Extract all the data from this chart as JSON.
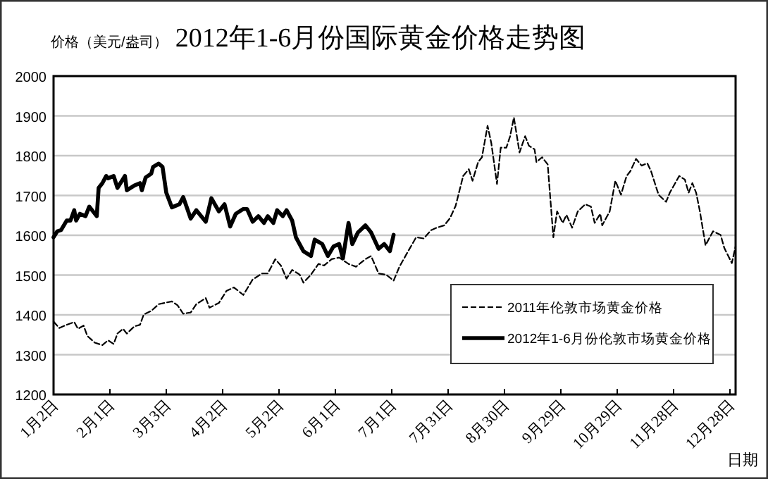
{
  "chart_data": {
    "type": "line",
    "title": "2012年1-6月份国际黄金价格走势图",
    "ylabel": "价格（美元/盎司）",
    "xlabel": "日期",
    "xlim": [
      "--01-02",
      "--12-31"
    ],
    "ylim": [
      1200,
      2000
    ],
    "xticks": [
      {
        "value": "--01-02",
        "label": "1月2日"
      },
      {
        "value": "--02-01",
        "label": "2月1日"
      },
      {
        "value": "--03-03",
        "label": "3月3日"
      },
      {
        "value": "--04-02",
        "label": "4月2日"
      },
      {
        "value": "--05-02",
        "label": "5月2日"
      },
      {
        "value": "--06-01",
        "label": "6月1日"
      },
      {
        "value": "--07-01",
        "label": "7月1日"
      },
      {
        "value": "--07-31",
        "label": "7月31日"
      },
      {
        "value": "--08-30",
        "label": "8月30日"
      },
      {
        "value": "--09-29",
        "label": "9月29日"
      },
      {
        "value": "--10-29",
        "label": "10月29日"
      },
      {
        "value": "--11-28",
        "label": "11月28日"
      },
      {
        "value": "--12-28",
        "label": "12月28日"
      }
    ],
    "yticks": [
      1200,
      1300,
      1400,
      1500,
      1600,
      1700,
      1800,
      1900,
      2000
    ],
    "grid": "y",
    "legend": "bottom right",
    "marker": "none",
    "series": [
      {
        "name": "2011年伦敦市场黄金价格",
        "color": "#000000",
        "line_style": "dashed",
        "x": [
          "--01-02",
          "--01-05",
          "--01-09",
          "--01-13",
          "--01-15",
          "--01-18",
          "--01-20",
          "--01-24",
          "--01-28",
          "--01-31",
          "--02-03",
          "--02-05",
          "--02-08",
          "--02-10",
          "--02-14",
          "--02-17",
          "--02-19",
          "--02-23",
          "--02-27",
          "--03-02",
          "--03-06",
          "--03-09",
          "--03-12",
          "--03-16",
          "--03-19",
          "--03-24",
          "--03-26",
          "--03-31",
          "--04-04",
          "--04-08",
          "--04-13",
          "--04-18",
          "--04-23",
          "--04-26",
          "--04-30",
          "--05-03",
          "--05-06",
          "--05-09",
          "--05-13",
          "--05-15",
          "--05-19",
          "--05-23",
          "--05-26",
          "--05-30",
          "--06-03",
          "--06-08",
          "--06-12",
          "--06-17",
          "--06-20",
          "--06-24",
          "--06-28",
          "--07-02",
          "--07-05",
          "--07-09",
          "--07-14",
          "--07-18",
          "--07-22",
          "--07-25",
          "--07-29",
          "--08-01",
          "--08-04",
          "--08-08",
          "--08-11",
          "--08-13",
          "--08-16",
          "--08-18",
          "--08-21",
          "--08-23",
          "--08-26",
          "--08-28",
          "--08-31",
          "--09-02",
          "--09-04",
          "--09-07",
          "--09-10",
          "--09-12",
          "--09-15",
          "--09-16",
          "--09-19",
          "--09-22",
          "--09-25",
          "--09-27",
          "--09-30",
          "--10-02",
          "--10-05",
          "--10-08",
          "--10-12",
          "--10-15",
          "--10-17",
          "--10-20",
          "--10-21",
          "--10-25",
          "--10-28",
          "--10-31",
          "--11-03",
          "--11-05",
          "--11-08",
          "--11-11",
          "--11-14",
          "--11-16",
          "--11-20",
          "--11-24",
          "--11-26",
          "--12-01",
          "--12-04",
          "--12-06",
          "--12-08",
          "--12-10",
          "--12-12",
          "--12-15",
          "--12-19",
          "--12-23",
          "--12-25",
          "--12-29",
          "--12-31"
        ],
        "values": [
          1383,
          1367,
          1375,
          1382,
          1365,
          1373,
          1347,
          1330,
          1324,
          1336,
          1327,
          1353,
          1365,
          1353,
          1371,
          1375,
          1401,
          1410,
          1427,
          1430,
          1434,
          1424,
          1403,
          1406,
          1427,
          1442,
          1418,
          1430,
          1460,
          1469,
          1450,
          1489,
          1504,
          1504,
          1540,
          1524,
          1491,
          1513,
          1501,
          1481,
          1501,
          1528,
          1524,
          1540,
          1544,
          1528,
          1521,
          1540,
          1548,
          1504,
          1501,
          1486,
          1520,
          1554,
          1595,
          1592,
          1613,
          1619,
          1625,
          1643,
          1674,
          1749,
          1766,
          1737,
          1784,
          1796,
          1875,
          1831,
          1729,
          1820,
          1820,
          1849,
          1896,
          1808,
          1849,
          1825,
          1816,
          1784,
          1796,
          1778,
          1595,
          1660,
          1631,
          1651,
          1619,
          1660,
          1678,
          1672,
          1631,
          1654,
          1625,
          1660,
          1737,
          1702,
          1749,
          1761,
          1792,
          1775,
          1781,
          1761,
          1702,
          1684,
          1707,
          1749,
          1740,
          1707,
          1731,
          1707,
          1660,
          1575,
          1610,
          1601,
          1568,
          1530,
          1572
        ]
      },
      {
        "name": "2012年1-6月份伦敦市场黄金价格",
        "color": "#000000",
        "line_style": "solid",
        "x": [
          "--01-02",
          "--01-04",
          "--01-06",
          "--01-09",
          "--01-11",
          "--01-13",
          "--01-14",
          "--01-16",
          "--01-19",
          "--01-21",
          "--01-25",
          "--01-26",
          "--01-28",
          "--01-30",
          "--01-31",
          "--02-03",
          "--02-05",
          "--02-09",
          "--02-10",
          "--02-14",
          "--02-17",
          "--02-18",
          "--02-20",
          "--02-23",
          "--02-24",
          "--02-27",
          "--03-01",
          "--03-03",
          "--03-06",
          "--03-10",
          "--03-12",
          "--03-16",
          "--03-19",
          "--03-24",
          "--03-27",
          "--03-31",
          "--04-03",
          "--04-06",
          "--04-09",
          "--04-13",
          "--04-15",
          "--04-18",
          "--04-21",
          "--04-24",
          "--04-26",
          "--04-29",
          "--05-01",
          "--05-04",
          "--05-06",
          "--05-09",
          "--05-11",
          "--05-15",
          "--05-19",
          "--05-21",
          "--05-25",
          "--05-28",
          "--05-31",
          "--06-03",
          "--06-05",
          "--06-08",
          "--06-10",
          "--06-13",
          "--06-17",
          "--06-20",
          "--06-24",
          "--06-27",
          "--06-30",
          "--07-02"
        ],
        "values": [
          1595,
          1610,
          1613,
          1637,
          1637,
          1663,
          1637,
          1654,
          1648,
          1672,
          1648,
          1719,
          1731,
          1749,
          1743,
          1749,
          1719,
          1749,
          1713,
          1725,
          1731,
          1713,
          1745,
          1755,
          1772,
          1780,
          1772,
          1707,
          1670,
          1678,
          1696,
          1642,
          1663,
          1634,
          1693,
          1660,
          1678,
          1622,
          1654,
          1666,
          1666,
          1634,
          1648,
          1631,
          1648,
          1631,
          1663,
          1648,
          1663,
          1637,
          1595,
          1560,
          1548,
          1589,
          1578,
          1548,
          1572,
          1578,
          1542,
          1631,
          1578,
          1607,
          1625,
          1607,
          1566,
          1578,
          1560,
          1601
        ]
      }
    ]
  }
}
